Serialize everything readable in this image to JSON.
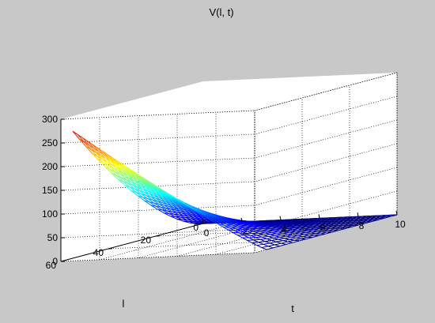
{
  "figure": {
    "background": "#c8c8c8",
    "axes_background": "#ffffff"
  },
  "chart_data": {
    "type": "surface-mesh",
    "title": "V(l, t)",
    "xlabel": "t",
    "ylabel": "l",
    "zlabel": "",
    "xlim": [
      0,
      10
    ],
    "ylim": [
      0,
      60
    ],
    "zlim": [
      0,
      300
    ],
    "x_ticks": [
      0,
      2,
      4,
      6,
      8,
      10
    ],
    "y_ticks": [
      0,
      20,
      40,
      60
    ],
    "z_ticks": [
      0,
      50,
      100,
      150,
      200,
      250,
      300
    ],
    "grid": true,
    "box": true,
    "colormap": "jet",
    "surface": {
      "t_range": [
        0,
        10
      ],
      "l_range": [
        0,
        55
      ],
      "t_gridlines": 40,
      "l_gridlines": 20,
      "approx_values": [
        {
          "l": 55,
          "t": 0,
          "V": 268
        },
        {
          "l": 55,
          "t": 5,
          "V": 150
        },
        {
          "l": 55,
          "t": 10,
          "V": 10
        },
        {
          "l": 25,
          "t": 0,
          "V": 70
        },
        {
          "l": 25,
          "t": 5,
          "V": 40
        },
        {
          "l": 0,
          "t": 0,
          "V": 0
        },
        {
          "l": 0,
          "t": 10,
          "V": 0
        }
      ]
    }
  }
}
